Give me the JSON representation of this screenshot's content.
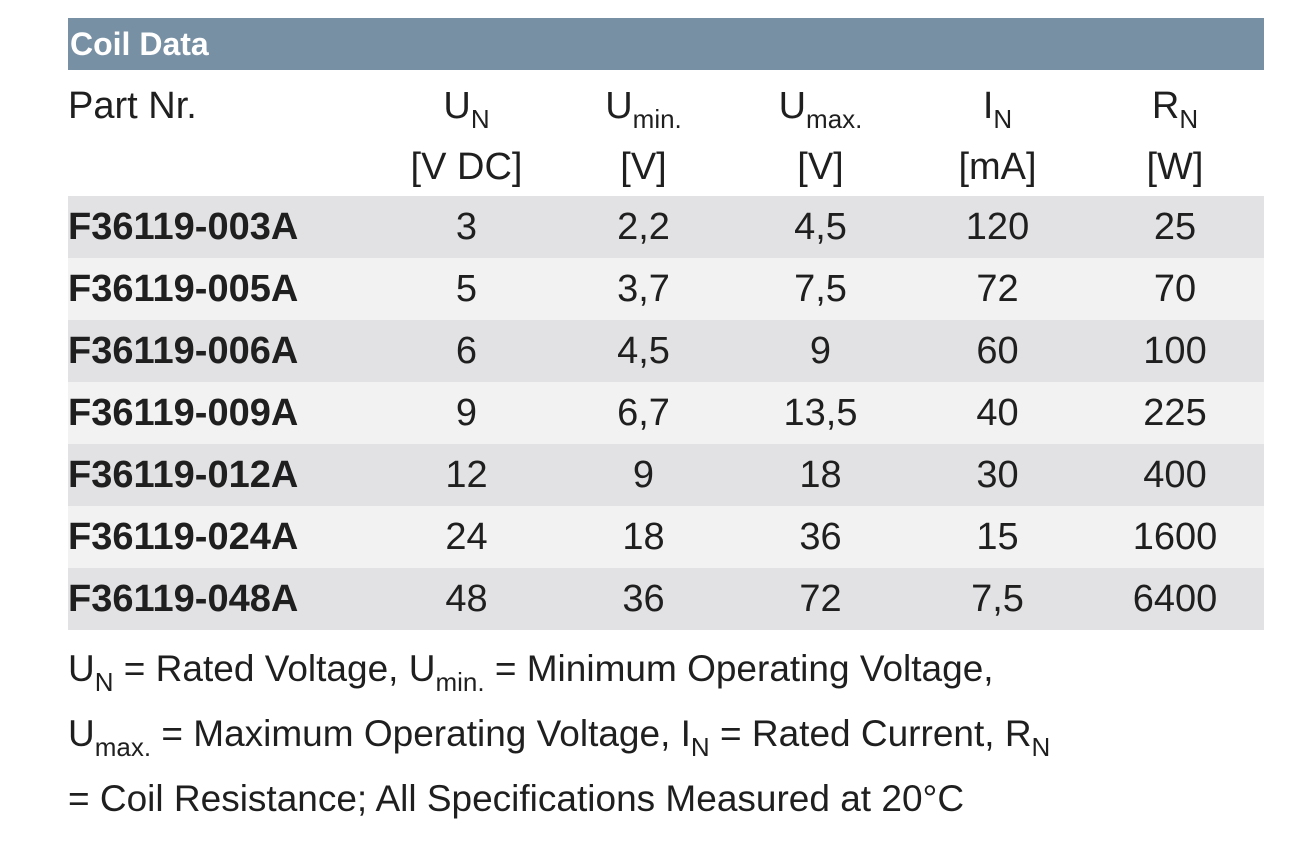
{
  "title": "Coil Data",
  "columns": [
    {
      "key": "part",
      "label": "Part Nr.",
      "sym": "",
      "sub": "",
      "unit": ""
    },
    {
      "key": "un",
      "label": "",
      "sym": "U",
      "sub": "N",
      "unit": "[V DC]"
    },
    {
      "key": "umin",
      "label": "",
      "sym": "U",
      "sub": "min.",
      "unit": "[V]"
    },
    {
      "key": "umax",
      "label": "",
      "sym": "U",
      "sub": "max.",
      "unit": "[V]"
    },
    {
      "key": "in",
      "label": "",
      "sym": "I",
      "sub": "N",
      "unit": "[mA]"
    },
    {
      "key": "rn",
      "label": "",
      "sym": "R",
      "sub": "N",
      "unit": "[W]"
    }
  ],
  "rows": [
    {
      "part": "F36119-003A",
      "un": "3",
      "umin": "2,2",
      "umax": "4,5",
      "in": "120",
      "rn": "25"
    },
    {
      "part": "F36119-005A",
      "un": "5",
      "umin": "3,7",
      "umax": "7,5",
      "in": "72",
      "rn": "70"
    },
    {
      "part": "F36119-006A",
      "un": "6",
      "umin": "4,5",
      "umax": "9",
      "in": "60",
      "rn": "100"
    },
    {
      "part": "F36119-009A",
      "un": "9",
      "umin": "6,7",
      "umax": "13,5",
      "in": "40",
      "rn": "225"
    },
    {
      "part": "F36119-012A",
      "un": "12",
      "umin": "9",
      "umax": "18",
      "in": "30",
      "rn": "400"
    },
    {
      "part": "F36119-024A",
      "un": "24",
      "umin": "18",
      "umax": "36",
      "in": "15",
      "rn": "1600"
    },
    {
      "part": "F36119-048A",
      "un": "48",
      "umin": "36",
      "umax": "72",
      "in": "7,5",
      "rn": "6400"
    }
  ],
  "footnote": {
    "line1": [
      {
        "t": "U"
      },
      {
        "s": "N"
      },
      {
        "t": " = Rated Voltage, U"
      },
      {
        "s": "min."
      },
      {
        "t": " = Minimum Operating Voltage,"
      }
    ],
    "line2": [
      {
        "t": "U"
      },
      {
        "s": "max."
      },
      {
        "t": " = Maximum Operating Voltage, I"
      },
      {
        "s": "N"
      },
      {
        "t": " = Rated Current, R"
      },
      {
        "s": "N"
      }
    ],
    "line3": [
      {
        "t": "= Coil Resistance; All Specifications Measured at 20°C"
      }
    ]
  },
  "colors": {
    "title_bar": "#7890a4",
    "row_shaded": "#e2e2e4",
    "row_light": "#f2f2f3"
  }
}
